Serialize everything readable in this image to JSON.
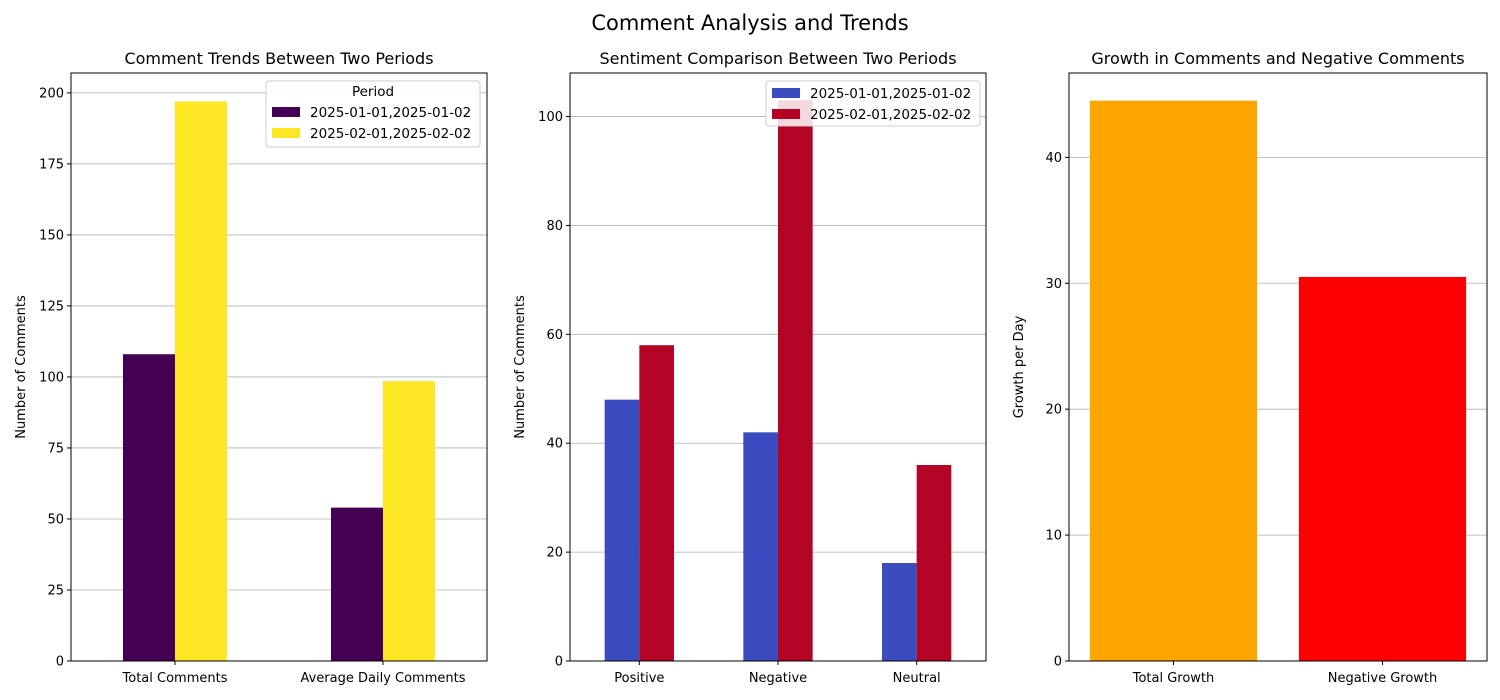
{
  "title": "Comment Analysis and Trends",
  "chart_data": [
    {
      "type": "bar",
      "title": "Comment Trends Between Two Periods",
      "xlabel": "",
      "ylabel": "Number of Comments",
      "categories": [
        "Total Comments",
        "Average Daily Comments"
      ],
      "series": [
        {
          "name": "2025-01-01,2025-01-02",
          "values": [
            108,
            54
          ],
          "color": "#440154"
        },
        {
          "name": "2025-02-01,2025-02-02",
          "values": [
            197,
            98.5
          ],
          "color": "#fde725"
        }
      ],
      "ylim": [
        0,
        207
      ],
      "yticks": [
        0,
        25,
        50,
        75,
        100,
        125,
        150,
        175,
        200
      ],
      "grid": "y",
      "legend": {
        "title": "Period",
        "placement": "top-right"
      }
    },
    {
      "type": "bar",
      "title": "Sentiment Comparison Between Two Periods",
      "xlabel": "",
      "ylabel": "Number of Comments",
      "categories": [
        "Positive",
        "Negative",
        "Neutral"
      ],
      "series": [
        {
          "name": "2025-01-01,2025-01-02",
          "values": [
            48,
            42,
            18
          ],
          "color": "#3b4cc0"
        },
        {
          "name": "2025-02-01,2025-02-02",
          "values": [
            58,
            103,
            36
          ],
          "color": "#b40426"
        }
      ],
      "ylim": [
        0,
        108
      ],
      "yticks": [
        0,
        20,
        40,
        60,
        80,
        100
      ],
      "grid": "y",
      "legend": {
        "title": "",
        "placement": "top-right"
      }
    },
    {
      "type": "bar",
      "title": "Growth in Comments and Negative Comments",
      "xlabel": "",
      "ylabel": "Growth per Day",
      "categories": [
        "Total Growth",
        "Negative Growth"
      ],
      "values": [
        44.5,
        30.5
      ],
      "colors": [
        "#ffa500",
        "#ff0000"
      ],
      "ylim": [
        0,
        46.7
      ],
      "yticks": [
        0,
        10,
        20,
        30,
        40
      ],
      "grid": "y"
    }
  ]
}
